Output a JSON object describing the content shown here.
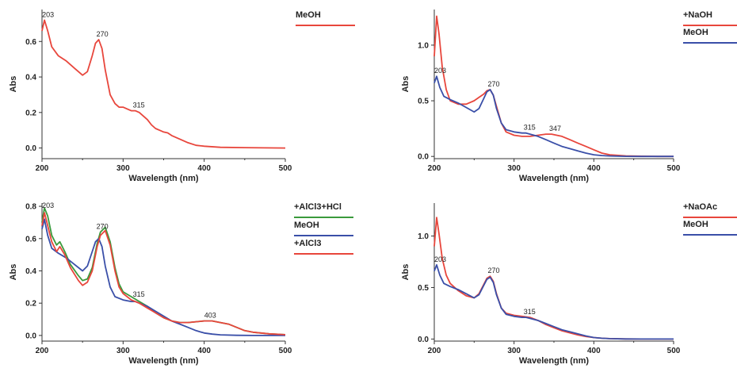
{
  "colors": {
    "red": "#e8463c",
    "blue": "#3a4fa8",
    "green": "#3a9a3c"
  },
  "chart_data": [
    {
      "type": "line",
      "xlabel": "Wavelength (nm)",
      "ylabel": "Abs",
      "xlim": [
        200,
        500
      ],
      "ylim": [
        -0.06,
        0.78
      ],
      "xticks": [
        200,
        300,
        400,
        500
      ],
      "yticks": [
        0.0,
        0.2,
        0.4,
        0.6
      ],
      "ytick_labels": [
        "0.0",
        "0.2",
        "0.4",
        "0.6"
      ],
      "legend": "top-right",
      "series": [
        {
          "name": "MeOH",
          "color": "#e8463c",
          "x": [
            200,
            203,
            207,
            212,
            220,
            230,
            240,
            250,
            256,
            262,
            266,
            270,
            274,
            278,
            284,
            290,
            295,
            300,
            305,
            310,
            315,
            320,
            325,
            330,
            335,
            340,
            345,
            350,
            355,
            360,
            370,
            380,
            390,
            400,
            420,
            450,
            500
          ],
          "y": [
            0.66,
            0.72,
            0.66,
            0.57,
            0.52,
            0.49,
            0.45,
            0.41,
            0.43,
            0.52,
            0.59,
            0.61,
            0.56,
            0.44,
            0.3,
            0.25,
            0.23,
            0.23,
            0.22,
            0.21,
            0.21,
            0.2,
            0.18,
            0.16,
            0.13,
            0.11,
            0.1,
            0.09,
            0.085,
            0.07,
            0.05,
            0.03,
            0.015,
            0.01,
            0.004,
            0.002,
            0.0
          ]
        }
      ],
      "annotations": [
        {
          "x": 203,
          "y": 0.72,
          "text": "203"
        },
        {
          "x": 270,
          "y": 0.61,
          "text": "270"
        },
        {
          "x": 315,
          "y": 0.21,
          "text": "315"
        }
      ]
    },
    {
      "type": "line",
      "xlabel": "Wavelength (nm)",
      "ylabel": "Abs",
      "xlim": [
        200,
        500
      ],
      "ylim": [
        -0.02,
        1.32
      ],
      "xticks": [
        200,
        300,
        400,
        500
      ],
      "yticks": [
        0.0,
        0.5,
        1.0
      ],
      "ytick_labels": [
        "0.0",
        "0.5",
        "1.0"
      ],
      "legend": "top-right",
      "series": [
        {
          "name": "+NaOH",
          "color": "#e8463c",
          "x": [
            200,
            203,
            206,
            210,
            215,
            220,
            230,
            240,
            250,
            256,
            262,
            266,
            270,
            274,
            278,
            284,
            290,
            300,
            310,
            320,
            330,
            340,
            347,
            360,
            370,
            380,
            390,
            400,
            410,
            420,
            440,
            460,
            480,
            500
          ],
          "y": [
            0.9,
            1.26,
            1.1,
            0.8,
            0.6,
            0.5,
            0.47,
            0.47,
            0.5,
            0.53,
            0.56,
            0.59,
            0.6,
            0.55,
            0.45,
            0.3,
            0.22,
            0.19,
            0.18,
            0.18,
            0.19,
            0.2,
            0.2,
            0.18,
            0.15,
            0.12,
            0.09,
            0.06,
            0.03,
            0.015,
            0.005,
            0.002,
            0.0,
            0.0
          ]
        },
        {
          "name": "MeOH",
          "color": "#3a4fa8",
          "x": [
            200,
            203,
            207,
            212,
            220,
            230,
            240,
            250,
            256,
            262,
            266,
            270,
            274,
            278,
            284,
            290,
            300,
            310,
            315,
            320,
            330,
            340,
            350,
            360,
            370,
            380,
            390,
            400,
            410,
            420,
            440,
            460,
            480,
            500
          ],
          "y": [
            0.66,
            0.72,
            0.62,
            0.54,
            0.51,
            0.48,
            0.44,
            0.4,
            0.43,
            0.52,
            0.58,
            0.6,
            0.55,
            0.43,
            0.3,
            0.24,
            0.22,
            0.21,
            0.21,
            0.2,
            0.18,
            0.15,
            0.12,
            0.09,
            0.07,
            0.05,
            0.03,
            0.015,
            0.008,
            0.004,
            0.001,
            0.0,
            0.0,
            0.0
          ]
        }
      ],
      "annotations": [
        {
          "x": 203,
          "y": 0.72,
          "text": "203"
        },
        {
          "x": 270,
          "y": 0.6,
          "text": "270"
        },
        {
          "x": 315,
          "y": 0.21,
          "text": "315"
        },
        {
          "x": 347,
          "y": 0.2,
          "text": "347"
        }
      ]
    },
    {
      "type": "line",
      "xlabel": "Wavelength (nm)",
      "ylabel": "Abs",
      "xlim": [
        200,
        500
      ],
      "ylim": [
        -0.035,
        0.82
      ],
      "xticks": [
        200,
        300,
        400,
        500
      ],
      "yticks": [
        0.0,
        0.2,
        0.4,
        0.6,
        0.8
      ],
      "ytick_labels": [
        "0.0",
        "0.2",
        "0.4",
        "0.6",
        "0.8"
      ],
      "legend": "top-right",
      "series": [
        {
          "name": "+AlCl3+HCl",
          "color": "#3a9a3c",
          "x": [
            200,
            203,
            207,
            212,
            218,
            222,
            228,
            235,
            245,
            250,
            256,
            262,
            268,
            272,
            278,
            284,
            290,
            295,
            300,
            310,
            320,
            330,
            340,
            350,
            360,
            370,
            380,
            390,
            400,
            403,
            410,
            420,
            430,
            440,
            450,
            460,
            480,
            500
          ],
          "y": [
            0.7,
            0.79,
            0.74,
            0.62,
            0.56,
            0.58,
            0.52,
            0.44,
            0.37,
            0.34,
            0.35,
            0.42,
            0.57,
            0.64,
            0.67,
            0.58,
            0.42,
            0.32,
            0.27,
            0.24,
            0.21,
            0.18,
            0.14,
            0.11,
            0.09,
            0.08,
            0.08,
            0.085,
            0.09,
            0.09,
            0.09,
            0.08,
            0.07,
            0.05,
            0.03,
            0.02,
            0.01,
            0.005
          ]
        },
        {
          "name": "MeOH",
          "color": "#3a4fa8",
          "x": [
            200,
            203,
            207,
            212,
            220,
            230,
            240,
            250,
            256,
            262,
            266,
            270,
            274,
            278,
            284,
            290,
            300,
            310,
            315,
            320,
            330,
            340,
            350,
            360,
            370,
            380,
            390,
            400,
            410,
            420,
            440,
            460,
            480,
            500
          ],
          "y": [
            0.66,
            0.72,
            0.62,
            0.54,
            0.51,
            0.48,
            0.44,
            0.4,
            0.43,
            0.52,
            0.58,
            0.6,
            0.55,
            0.43,
            0.3,
            0.24,
            0.22,
            0.21,
            0.21,
            0.2,
            0.18,
            0.15,
            0.12,
            0.09,
            0.07,
            0.05,
            0.03,
            0.015,
            0.008,
            0.004,
            0.001,
            0.0,
            0.0,
            0.0
          ]
        },
        {
          "name": "+AlCl3",
          "color": "#e8463c",
          "x": [
            200,
            203,
            207,
            212,
            218,
            222,
            228,
            235,
            245,
            250,
            256,
            262,
            268,
            272,
            278,
            284,
            290,
            295,
            300,
            310,
            320,
            330,
            340,
            350,
            360,
            370,
            380,
            390,
            400,
            403,
            410,
            420,
            430,
            440,
            450,
            460,
            480,
            500
          ],
          "y": [
            0.68,
            0.76,
            0.68,
            0.58,
            0.52,
            0.55,
            0.5,
            0.42,
            0.34,
            0.31,
            0.33,
            0.4,
            0.55,
            0.62,
            0.65,
            0.56,
            0.4,
            0.3,
            0.26,
            0.22,
            0.2,
            0.17,
            0.14,
            0.11,
            0.09,
            0.08,
            0.08,
            0.085,
            0.09,
            0.09,
            0.09,
            0.08,
            0.07,
            0.05,
            0.03,
            0.02,
            0.01,
            0.005
          ]
        }
      ],
      "annotations": [
        {
          "x": 203,
          "y": 0.77,
          "text": "203"
        },
        {
          "x": 270,
          "y": 0.64,
          "text": "270"
        },
        {
          "x": 315,
          "y": 0.22,
          "text": "315"
        },
        {
          "x": 403,
          "y": 0.09,
          "text": "403"
        }
      ]
    },
    {
      "type": "line",
      "xlabel": "Wavelength (nm)",
      "ylabel": "Abs",
      "xlim": [
        200,
        500
      ],
      "ylim": [
        -0.02,
        1.32
      ],
      "xticks": [
        200,
        300,
        400,
        500
      ],
      "yticks": [
        0.0,
        0.5,
        1.0
      ],
      "ytick_labels": [
        "0.0",
        "0.5",
        "1.0"
      ],
      "legend": "top-right",
      "series": [
        {
          "name": "+NaOAc",
          "color": "#e8463c",
          "x": [
            200,
            203,
            206,
            210,
            215,
            220,
            230,
            240,
            250,
            256,
            262,
            266,
            270,
            274,
            278,
            284,
            290,
            300,
            310,
            320,
            330,
            340,
            350,
            360,
            370,
            380,
            390,
            400,
            410,
            420,
            440,
            460,
            480,
            500
          ],
          "y": [
            0.9,
            1.18,
            1.02,
            0.78,
            0.62,
            0.54,
            0.47,
            0.42,
            0.4,
            0.44,
            0.53,
            0.59,
            0.61,
            0.56,
            0.44,
            0.3,
            0.25,
            0.23,
            0.22,
            0.21,
            0.18,
            0.14,
            0.11,
            0.08,
            0.06,
            0.04,
            0.025,
            0.015,
            0.008,
            0.004,
            0.001,
            0.0,
            0.0,
            0.0
          ]
        },
        {
          "name": "MeOH",
          "color": "#3a4fa8",
          "x": [
            200,
            203,
            207,
            212,
            220,
            230,
            240,
            250,
            256,
            262,
            266,
            270,
            274,
            278,
            284,
            290,
            300,
            310,
            315,
            320,
            330,
            340,
            350,
            360,
            370,
            380,
            390,
            400,
            410,
            420,
            440,
            460,
            480,
            500
          ],
          "y": [
            0.66,
            0.72,
            0.62,
            0.54,
            0.51,
            0.48,
            0.44,
            0.4,
            0.43,
            0.52,
            0.58,
            0.6,
            0.55,
            0.43,
            0.3,
            0.24,
            0.22,
            0.21,
            0.21,
            0.2,
            0.18,
            0.15,
            0.12,
            0.09,
            0.07,
            0.05,
            0.03,
            0.015,
            0.008,
            0.004,
            0.001,
            0.0,
            0.0,
            0.0
          ]
        }
      ],
      "annotations": [
        {
          "x": 203,
          "y": 0.72,
          "text": "203"
        },
        {
          "x": 270,
          "y": 0.61,
          "text": "270"
        },
        {
          "x": 315,
          "y": 0.21,
          "text": "315"
        }
      ]
    }
  ]
}
